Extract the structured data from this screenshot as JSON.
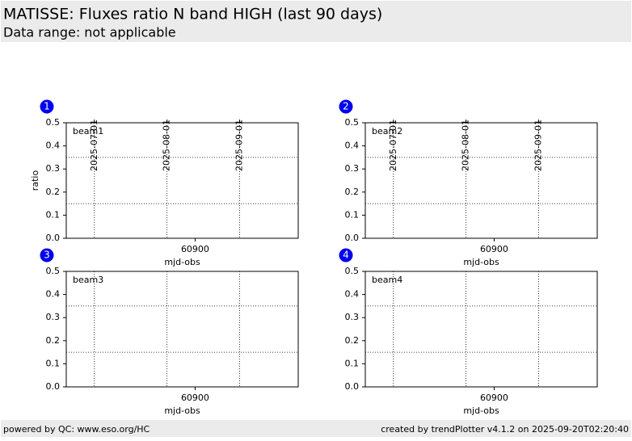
{
  "header": {
    "title": "MATISSE: Fluxes ratio N band HIGH (last 90 days)",
    "subtitle": "Data range: not applicable"
  },
  "chart_data": [
    {
      "type": "line",
      "badge": "1",
      "annotation": "beam1",
      "ylabel": "ratio",
      "xlabel": "mjd-obs",
      "xlim": [
        60845,
        60944
      ],
      "ylim": [
        0,
        0.5
      ],
      "yticks": [
        {
          "value": 0,
          "label": "0.0"
        },
        0.1,
        0.2,
        0.3,
        0.4,
        0.5
      ],
      "xticks": [
        60900
      ],
      "x2ticks": [
        {
          "value": 60857,
          "label": "2025-07-01"
        },
        {
          "value": 60888,
          "label": "2025-08-01"
        },
        {
          "value": 60919,
          "label": "2025-09-01"
        }
      ],
      "hlines": [
        0.15,
        0.35
      ],
      "series": []
    },
    {
      "type": "line",
      "badge": "2",
      "annotation": "beam2",
      "xlabel": "mjd-obs",
      "xlim": [
        60845,
        60944
      ],
      "ylim": [
        0,
        0.5
      ],
      "yticks": [
        {
          "value": 0,
          "label": "0.0"
        },
        0.1,
        0.2,
        0.3,
        0.4,
        0.5
      ],
      "xticks": [
        60900
      ],
      "x2ticks": [
        {
          "value": 60857,
          "label": "2025-07-01"
        },
        {
          "value": 60888,
          "label": "2025-08-01"
        },
        {
          "value": 60919,
          "label": "2025-09-01"
        }
      ],
      "hlines": [
        0.15,
        0.35
      ],
      "series": []
    },
    {
      "type": "line",
      "badge": "3",
      "annotation": "beam3",
      "xlabel": "mjd-obs",
      "xlim": [
        60845,
        60944
      ],
      "ylim": [
        0,
        0.5
      ],
      "yticks": [
        {
          "value": 0,
          "label": "0.0"
        },
        0.1,
        0.2,
        0.3,
        0.4,
        0.5
      ],
      "xticks": [
        60900
      ],
      "x2ticks": [
        {
          "value": 60857
        },
        {
          "value": 60888
        },
        {
          "value": 60919
        }
      ],
      "hlines": [
        0.15,
        0.35
      ],
      "series": []
    },
    {
      "type": "line",
      "badge": "4",
      "annotation": "beam4",
      "xlabel": "mjd-obs",
      "xlim": [
        60845,
        60944
      ],
      "ylim": [
        0,
        0.5
      ],
      "yticks": [
        {
          "value": 0,
          "label": "0.0"
        },
        0.1,
        0.2,
        0.3,
        0.4,
        0.5
      ],
      "xticks": [
        60900
      ],
      "x2ticks": [
        {
          "value": 60857
        },
        {
          "value": 60888
        },
        {
          "value": 60919
        }
      ],
      "hlines": [
        0.15,
        0.35
      ],
      "series": []
    }
  ],
  "footer": {
    "left": "powered by QC: www.eso.org/HC",
    "right": "created by trendPlotter v4.1.2 on 2025-09-20T02:20:40"
  }
}
